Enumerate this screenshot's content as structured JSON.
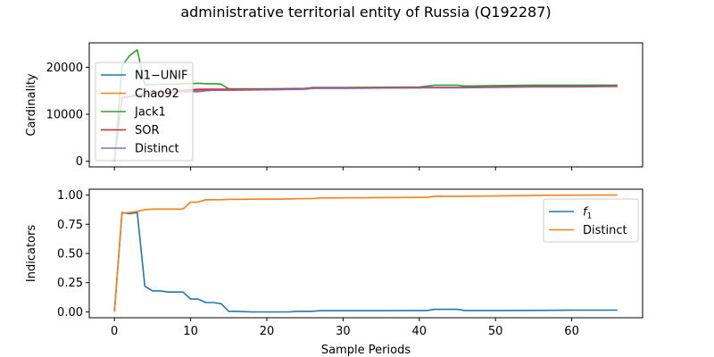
{
  "title": "administrative territorial entity of Russia (Q192287)",
  "chart_data": [
    {
      "type": "line",
      "ylabel": "Cardinality",
      "xlabel": "",
      "xlim": [
        -3.3,
        69.3
      ],
      "ylim": [
        -1200,
        25200
      ],
      "x_ticks": [
        0,
        10,
        20,
        30,
        40,
        50,
        60
      ],
      "x_tick_labels_visible": false,
      "y_ticks": [
        0,
        10000,
        20000
      ],
      "y_tick_labels": [
        "0",
        "10000",
        "20000"
      ],
      "legend_position": "upper-left",
      "series": [
        {
          "name": "N1−UNIF",
          "color": "#1f77b4",
          "points": [
            [
              0,
              0
            ],
            [
              1,
              13500
            ],
            [
              2,
              13800
            ],
            [
              3,
              14000
            ],
            [
              4,
              14300
            ],
            [
              5,
              14500
            ],
            [
              6,
              14700
            ],
            [
              7,
              14800
            ],
            [
              8,
              14900
            ],
            [
              9,
              15000
            ],
            [
              10,
              15100
            ],
            [
              11,
              15100
            ],
            [
              12,
              15200
            ],
            [
              13,
              15200
            ],
            [
              14,
              15200
            ],
            [
              15,
              15300
            ],
            [
              16,
              15300
            ],
            [
              20,
              15300
            ],
            [
              25,
              15400
            ],
            [
              26,
              15600
            ],
            [
              30,
              15600
            ],
            [
              40,
              15600
            ],
            [
              41,
              15700
            ],
            [
              45,
              15700
            ],
            [
              50,
              15800
            ],
            [
              55,
              15900
            ],
            [
              60,
              15900
            ],
            [
              66,
              16000
            ]
          ]
        },
        {
          "name": "Chao92",
          "color": "#ff7f0e",
          "points": [
            [
              0,
              0
            ],
            [
              1,
              13600
            ],
            [
              2,
              13900
            ],
            [
              3,
              14100
            ],
            [
              4,
              14400
            ],
            [
              5,
              14600
            ],
            [
              6,
              14800
            ],
            [
              7,
              14900
            ],
            [
              8,
              15000
            ],
            [
              9,
              15100
            ],
            [
              10,
              15200
            ],
            [
              11,
              15200
            ],
            [
              12,
              15300
            ],
            [
              13,
              15300
            ],
            [
              14,
              15300
            ],
            [
              15,
              15300
            ],
            [
              20,
              15300
            ],
            [
              25,
              15400
            ],
            [
              26,
              15600
            ],
            [
              30,
              15600
            ],
            [
              40,
              15700
            ],
            [
              45,
              15700
            ],
            [
              50,
              15800
            ],
            [
              55,
              15900
            ],
            [
              60,
              15900
            ],
            [
              66,
              16000
            ]
          ]
        },
        {
          "name": "Jack1",
          "color": "#2ca02c",
          "points": [
            [
              0,
              0
            ],
            [
              1,
              20300
            ],
            [
              2,
              22500
            ],
            [
              3,
              23700
            ],
            [
              4,
              16300
            ],
            [
              5,
              16300
            ],
            [
              6,
              16400
            ],
            [
              7,
              16400
            ],
            [
              8,
              16400
            ],
            [
              9,
              16500
            ],
            [
              10,
              16500
            ],
            [
              11,
              16600
            ],
            [
              12,
              16500
            ],
            [
              13,
              16500
            ],
            [
              14,
              16400
            ],
            [
              15,
              15400
            ],
            [
              20,
              15400
            ],
            [
              25,
              15500
            ],
            [
              26,
              15700
            ],
            [
              30,
              15700
            ],
            [
              40,
              15800
            ],
            [
              42,
              16200
            ],
            [
              45,
              16200
            ],
            [
              46,
              16000
            ],
            [
              50,
              16100
            ],
            [
              55,
              16200
            ],
            [
              60,
              16200
            ],
            [
              66,
              16200
            ]
          ]
        },
        {
          "name": "SOR",
          "color": "#d62728",
          "points": [
            [
              0,
              0
            ],
            [
              1,
              13500
            ],
            [
              2,
              13800
            ],
            [
              3,
              14100
            ],
            [
              4,
              14400
            ],
            [
              5,
              14600
            ],
            [
              6,
              14800
            ],
            [
              7,
              14900
            ],
            [
              8,
              15000
            ],
            [
              9,
              15100
            ],
            [
              10,
              15200
            ],
            [
              11,
              15300
            ],
            [
              12,
              15300
            ],
            [
              13,
              15300
            ],
            [
              14,
              15300
            ],
            [
              15,
              15300
            ],
            [
              20,
              15300
            ],
            [
              25,
              15400
            ],
            [
              26,
              15600
            ],
            [
              30,
              15600
            ],
            [
              40,
              15700
            ],
            [
              45,
              15700
            ],
            [
              50,
              15800
            ],
            [
              55,
              15900
            ],
            [
              60,
              15900
            ],
            [
              66,
              16000
            ]
          ]
        },
        {
          "name": "Distinct",
          "color": "#9467bd",
          "points": [
            [
              0,
              0
            ],
            [
              1,
              13400
            ],
            [
              2,
              13700
            ],
            [
              3,
              13900
            ],
            [
              4,
              14100
            ],
            [
              5,
              14300
            ],
            [
              6,
              14400
            ],
            [
              7,
              14500
            ],
            [
              8,
              14600
            ],
            [
              9,
              14700
            ],
            [
              10,
              14800
            ],
            [
              11,
              14800
            ],
            [
              12,
              15000
            ],
            [
              13,
              15100
            ],
            [
              14,
              15100
            ],
            [
              15,
              15100
            ],
            [
              20,
              15200
            ],
            [
              25,
              15300
            ],
            [
              26,
              15500
            ],
            [
              30,
              15500
            ],
            [
              40,
              15600
            ],
            [
              45,
              15600
            ],
            [
              50,
              15700
            ],
            [
              55,
              15800
            ],
            [
              60,
              15800
            ],
            [
              66,
              15900
            ]
          ]
        }
      ]
    },
    {
      "type": "line",
      "ylabel": "Indicators",
      "xlabel": "Sample Periods",
      "xlim": [
        -3.3,
        69.3
      ],
      "ylim": [
        -0.05,
        1.05
      ],
      "x_ticks": [
        0,
        10,
        20,
        30,
        40,
        50,
        60
      ],
      "x_tick_labels": [
        "0",
        "10",
        "20",
        "30",
        "40",
        "50",
        "60"
      ],
      "y_ticks": [
        0.0,
        0.25,
        0.5,
        0.75,
        1.0
      ],
      "y_tick_labels": [
        "0.00",
        "0.25",
        "0.50",
        "0.75",
        "1.00"
      ],
      "legend_position": "upper-right",
      "series": [
        {
          "name": "f1",
          "name_base": "f",
          "name_sub": "1",
          "color": "#1f77b4",
          "points": [
            [
              0,
              0
            ],
            [
              1,
              0.85
            ],
            [
              2,
              0.84
            ],
            [
              3,
              0.85
            ],
            [
              4,
              0.22
            ],
            [
              5,
              0.18
            ],
            [
              6,
              0.18
            ],
            [
              7,
              0.17
            ],
            [
              8,
              0.17
            ],
            [
              9,
              0.17
            ],
            [
              10,
              0.11
            ],
            [
              11,
              0.11
            ],
            [
              12,
              0.08
            ],
            [
              13,
              0.08
            ],
            [
              14,
              0.07
            ],
            [
              15,
              0.005
            ],
            [
              16,
              0.005
            ],
            [
              18,
              0.0
            ],
            [
              20,
              0.0
            ],
            [
              23,
              0.0
            ],
            [
              24,
              0.005
            ],
            [
              26,
              0.005
            ],
            [
              27,
              0.01
            ],
            [
              30,
              0.01
            ],
            [
              35,
              0.01
            ],
            [
              40,
              0.012
            ],
            [
              41,
              0.012
            ],
            [
              42,
              0.022
            ],
            [
              45,
              0.022
            ],
            [
              46,
              0.012
            ],
            [
              50,
              0.012
            ],
            [
              55,
              0.013
            ],
            [
              60,
              0.015
            ],
            [
              66,
              0.015
            ]
          ]
        },
        {
          "name": "Distinct",
          "color": "#ff7f0e",
          "points": [
            [
              0,
              0
            ],
            [
              1,
              0.845
            ],
            [
              2,
              0.85
            ],
            [
              3,
              0.86
            ],
            [
              4,
              0.875
            ],
            [
              5,
              0.88
            ],
            [
              6,
              0.88
            ],
            [
              7,
              0.88
            ],
            [
              8,
              0.88
            ],
            [
              9,
              0.88
            ],
            [
              10,
              0.94
            ],
            [
              11,
              0.94
            ],
            [
              12,
              0.96
            ],
            [
              13,
              0.96
            ],
            [
              14,
              0.96
            ],
            [
              15,
              0.963
            ],
            [
              20,
              0.965
            ],
            [
              22,
              0.965
            ],
            [
              24,
              0.968
            ],
            [
              25,
              0.97
            ],
            [
              26,
              0.97
            ],
            [
              27,
              0.975
            ],
            [
              30,
              0.976
            ],
            [
              35,
              0.978
            ],
            [
              40,
              0.98
            ],
            [
              41,
              0.98
            ],
            [
              42,
              0.99
            ],
            [
              45,
              0.99
            ],
            [
              50,
              0.992
            ],
            [
              55,
              0.996
            ],
            [
              56,
              0.998
            ],
            [
              60,
              0.999
            ],
            [
              66,
              1.0
            ]
          ]
        }
      ]
    }
  ]
}
